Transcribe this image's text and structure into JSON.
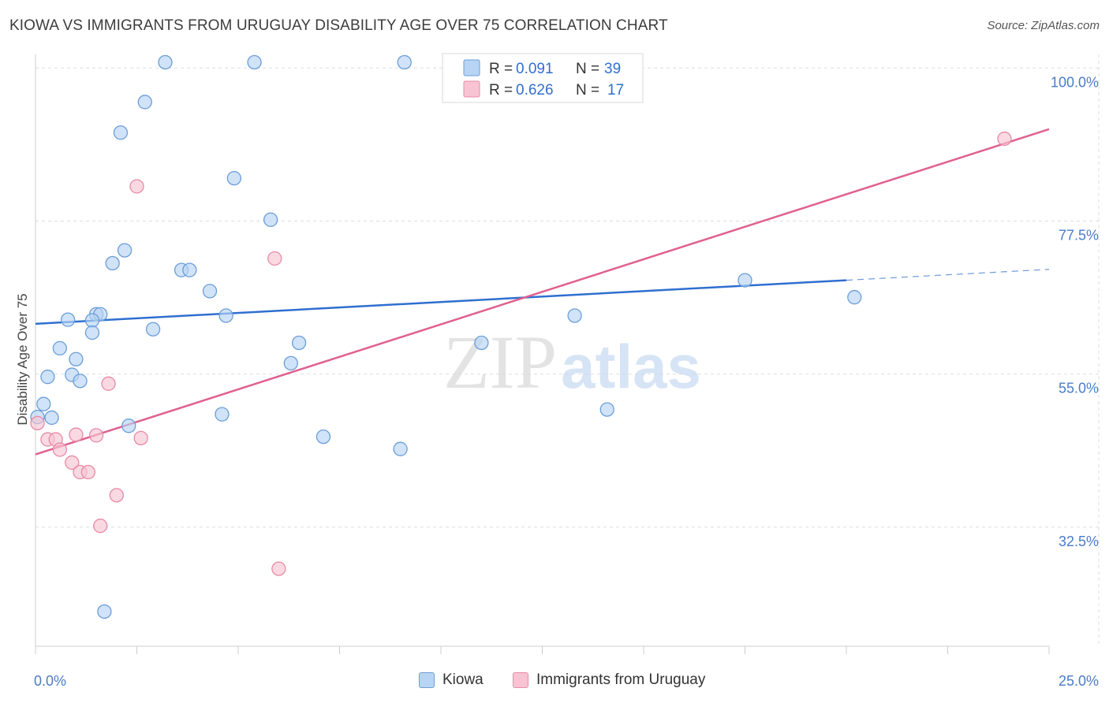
{
  "header": {
    "title": "KIOWA VS IMMIGRANTS FROM URUGUAY DISABILITY AGE OVER 75 CORRELATION CHART",
    "source": "Source: ZipAtlas.com"
  },
  "watermark": {
    "part1": "ZIP",
    "part2": "atlas"
  },
  "colors": {
    "kiowa_fill": "#b8d4f4",
    "kiowa_stroke": "#6a9ed8",
    "kiowa_line": "#2f6fcf",
    "uruguay_fill": "#f8c4d3",
    "uruguay_stroke": "#e88aa8",
    "uruguay_line": "#e06090",
    "tick_label": "#4a7cc8",
    "grid": "#dddddd"
  },
  "legend_top": {
    "rows": [
      {
        "r_label": "R =",
        "r_value": "0.091",
        "n_label": "N =",
        "n_value": "39"
      },
      {
        "r_label": "R =",
        "r_value": "0.626",
        "n_label": "N =",
        "n_value": "17"
      }
    ]
  },
  "legend_bottom": {
    "items": [
      "Kiowa",
      "Immigrants from Uruguay"
    ]
  },
  "chart_data": {
    "type": "scatter",
    "title": "KIOWA VS IMMIGRANTS FROM URUGUAY DISABILITY AGE OVER 75 CORRELATION CHART",
    "xlabel": "",
    "ylabel": "Disability Age Over 75",
    "xlim": [
      0,
      25
    ],
    "ylim": [
      15,
      102
    ],
    "x_tick_labels": [
      "0.0%",
      "25.0%"
    ],
    "y_ticks": [
      100,
      77.5,
      55,
      32.5
    ],
    "y_tick_labels": [
      "100.0%",
      "77.5%",
      "55.0%",
      "32.5%"
    ],
    "grid": true,
    "legend_position": "top-center",
    "series": [
      {
        "name": "Kiowa",
        "r": 0.091,
        "n": 39,
        "trend": {
          "x_start": 0,
          "y_start": 62.4,
          "x_end": 20,
          "y_end": 68.8,
          "dashed_to_x": 25,
          "dashed_to_y": 70.4
        },
        "points": [
          [
            3.2,
            102
          ],
          [
            5.4,
            102
          ],
          [
            9.1,
            102
          ],
          [
            2.7,
            95
          ],
          [
            2.1,
            90.5
          ],
          [
            4.9,
            83.8
          ],
          [
            5.8,
            77.7
          ],
          [
            2.2,
            73.2
          ],
          [
            1.9,
            71.3
          ],
          [
            3.6,
            70.3
          ],
          [
            3.8,
            70.3
          ],
          [
            17.5,
            68.8
          ],
          [
            4.3,
            67.2
          ],
          [
            20.2,
            66.3
          ],
          [
            1.5,
            63.8
          ],
          [
            1.6,
            63.8
          ],
          [
            4.7,
            63.6
          ],
          [
            13.3,
            63.6
          ],
          [
            0.8,
            63.0
          ],
          [
            1.4,
            62.9
          ],
          [
            2.9,
            61.6
          ],
          [
            1.4,
            61.1
          ],
          [
            6.5,
            59.6
          ],
          [
            11.0,
            59.6
          ],
          [
            0.6,
            58.8
          ],
          [
            1.0,
            57.2
          ],
          [
            6.3,
            56.6
          ],
          [
            0.3,
            54.6
          ],
          [
            0.9,
            54.9
          ],
          [
            1.1,
            54.0
          ],
          [
            0.2,
            50.6
          ],
          [
            0.4,
            48.6
          ],
          [
            14.1,
            49.8
          ],
          [
            4.6,
            49.1
          ],
          [
            2.3,
            47.4
          ],
          [
            7.1,
            45.8
          ],
          [
            9.0,
            44.0
          ],
          [
            1.7,
            20.1
          ],
          [
            0.05,
            48.7
          ]
        ]
      },
      {
        "name": "Immigrants from Uruguay",
        "r": 0.626,
        "n": 17,
        "trend": {
          "x_start": 0,
          "y_start": 43.2,
          "x_end": 25,
          "y_end": 91.0
        },
        "points": [
          [
            23.9,
            89.6
          ],
          [
            2.5,
            82.6
          ],
          [
            5.9,
            72.0
          ],
          [
            1.8,
            53.6
          ],
          [
            0.05,
            47.8
          ],
          [
            1.0,
            46.1
          ],
          [
            1.5,
            46.0
          ],
          [
            2.6,
            45.6
          ],
          [
            0.3,
            45.4
          ],
          [
            0.5,
            45.4
          ],
          [
            0.6,
            43.9
          ],
          [
            0.9,
            42.0
          ],
          [
            1.1,
            40.6
          ],
          [
            1.3,
            40.6
          ],
          [
            2.0,
            37.2
          ],
          [
            1.6,
            32.7
          ],
          [
            6.0,
            26.4
          ]
        ]
      }
    ]
  }
}
